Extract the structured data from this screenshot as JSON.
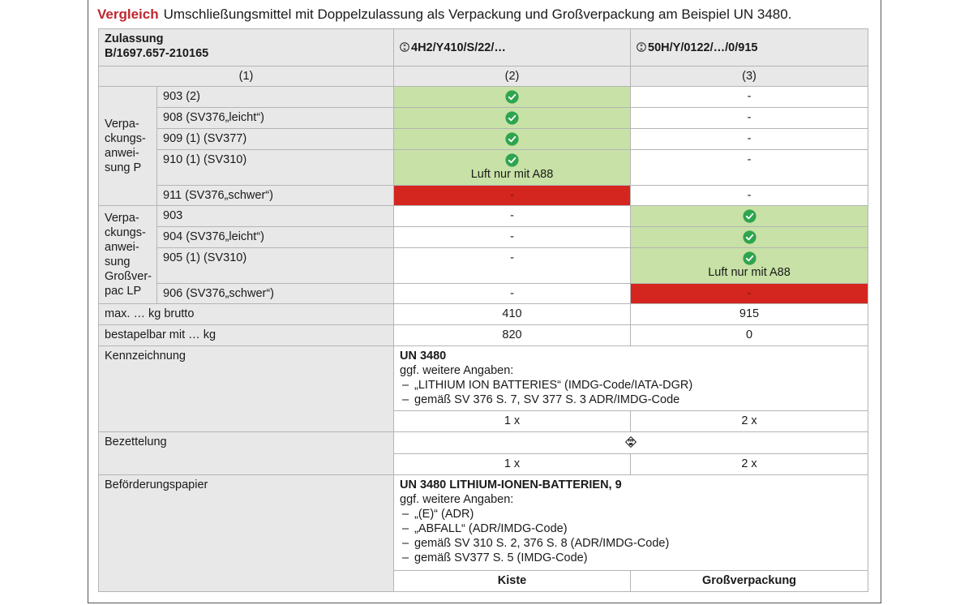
{
  "title": {
    "keyword": "Vergleich",
    "text": "Umschließungsmittel mit Doppelzulassung als Verpackung und Großverpackung am Beispiel UN 3480."
  },
  "header": {
    "zulassung_label": "Zulassung",
    "zulassung_nr": "B/1697.657-210165",
    "col2_code": "4H2/Y410/S/22/…",
    "col3_code": "50H/Y/0122/…/0/915",
    "col1_num": "(1)",
    "col2_num": "(2)",
    "col3_num": "(3)"
  },
  "group_p": {
    "label_lines": [
      "Verpa-",
      "ckungs-",
      "anwei-",
      "sung P"
    ],
    "rows": [
      {
        "label": "903 (2)",
        "col2": "ok",
        "col2_note": "",
        "col3": "-"
      },
      {
        "label": "908 (SV376„leicht“)",
        "col2": "ok",
        "col2_note": "",
        "col3": "-"
      },
      {
        "label": "909 (1) (SV377)",
        "col2": "ok",
        "col2_note": "",
        "col3": "-"
      },
      {
        "label": "910 (1) (SV310)",
        "col2": "ok",
        "col2_note": "Luft nur mit A88",
        "col3": "-"
      },
      {
        "label": "911 (SV376„schwer“)",
        "col2": "-",
        "col2_note": "",
        "col3": "-"
      }
    ]
  },
  "group_lp": {
    "label_lines": [
      "Verpa-",
      "ckungs-",
      "anwei-",
      "sung",
      "Großver-",
      "pac LP"
    ],
    "rows": [
      {
        "label": "903",
        "col2": "-",
        "col3": "ok",
        "col3_note": ""
      },
      {
        "label": "904 (SV376„leicht“)",
        "col2": "-",
        "col3": "ok",
        "col3_note": ""
      },
      {
        "label": "905 (1) (SV310)",
        "col2": "-",
        "col3": "ok",
        "col3_note": "Luft nur mit A88"
      },
      {
        "label": "906 (SV376„schwer“)",
        "col2": "-",
        "col3": "-"
      }
    ]
  },
  "max_brutto": {
    "label": "max. … kg brutto",
    "col2": "410",
    "col3": "915"
  },
  "stapelbar": {
    "label": "bestapelbar mit … kg",
    "col2": "820",
    "col3": "0"
  },
  "kennzeichnung": {
    "label": "Kennzeichnung",
    "head": "UN 3480",
    "sub": "ggf. weitere Angaben:",
    "items": [
      "„LITHIUM ION BATTERIES“ (IMDG-Code/IATA-DGR)",
      "gemäß SV 376 S. 7, SV 377 S. 3 ADR/IMDG-Code"
    ],
    "col2": "1 x",
    "col3": "2 x"
  },
  "bezettelung": {
    "label": "Bezettelung",
    "icon": "class-9-battery-label-icon",
    "col2": "1 x",
    "col3": "2 x"
  },
  "befoerderung": {
    "label": "Beförderungspapier",
    "head": "UN 3480 LITHIUM-IONEN-BATTERIEN, 9",
    "sub": "ggf. weitere Angaben:",
    "items": [
      "„(E)“ (ADR)",
      "„ABFALL“ (ADR/IMDG-Code)",
      "gemäß SV 310 S. 2, 376 S. 8 (ADR/IMDG-Code)",
      "gemäß SV377 S. 5 (IMDG-Code)"
    ]
  },
  "footer": {
    "col2": "Kiste",
    "col3": "Großverpackung"
  },
  "colors": {
    "accent": "#c0272d",
    "ok": "#c7e1a6",
    "bad": "#d4251f",
    "tick": "#2ea44f",
    "header": "#e8e8e8"
  }
}
